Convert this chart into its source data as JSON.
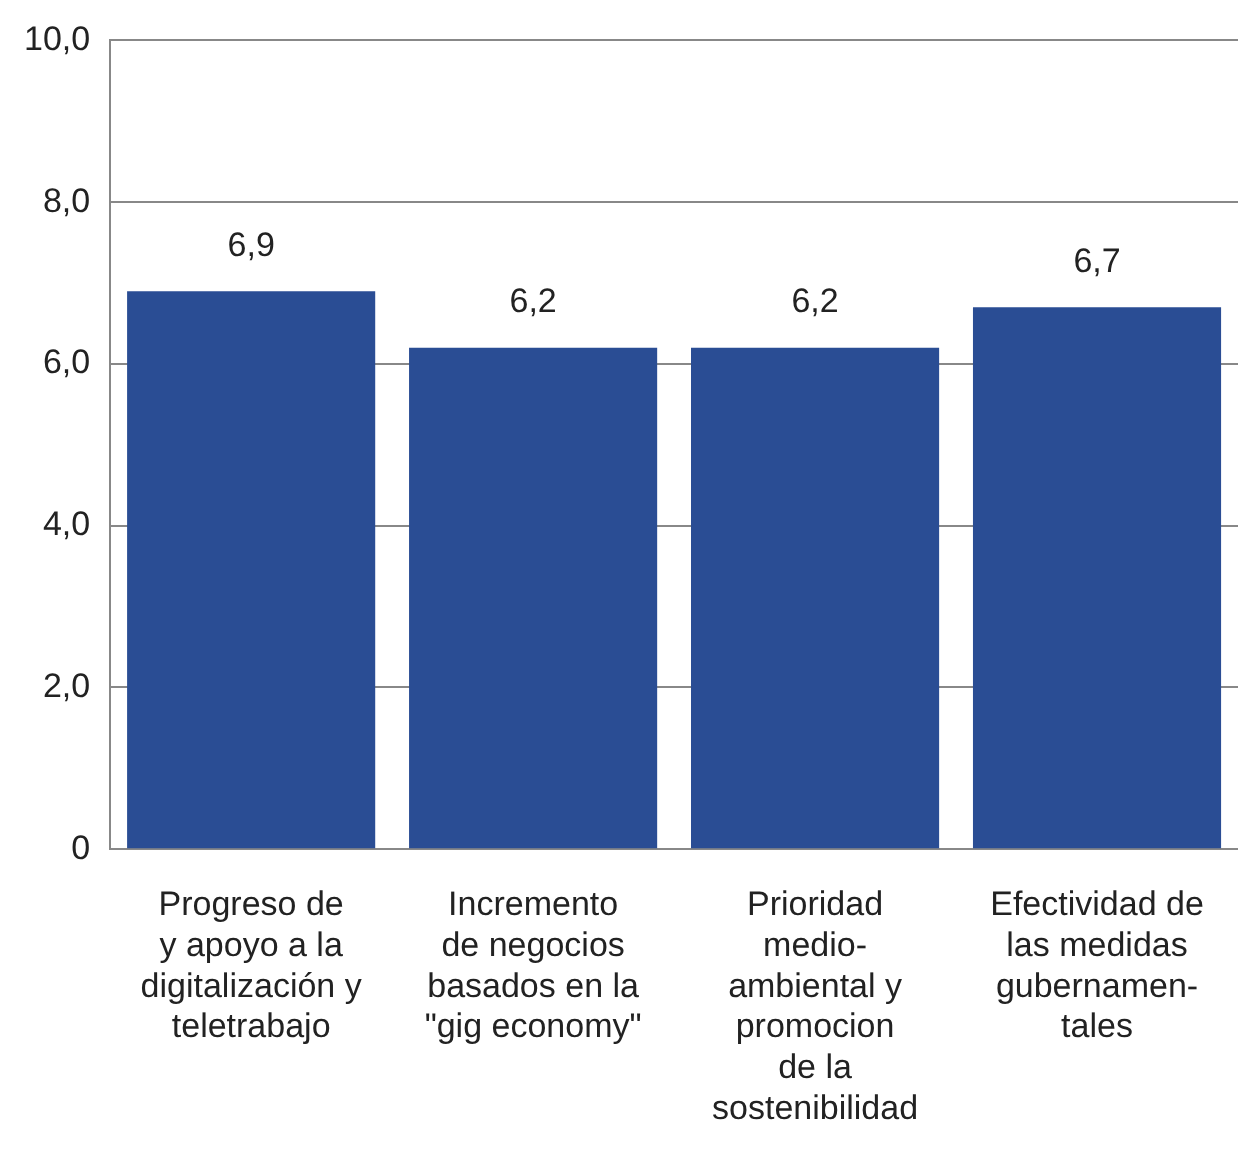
{
  "chart_data": {
    "type": "bar",
    "categories": [
      "Progreso de\ny apoyo a la\ndigitalización y\nteletrabajo",
      "Incremento\nde negocios\nbasados en la\n\"gig economy\"",
      "Prioridad\nmedio-\nambiental y\npromocion\nde la\nsostenibilidad",
      "Efectividad de\nlas medidas\ngubernamen-\ntales"
    ],
    "values": [
      6.9,
      6.2,
      6.2,
      6.7
    ],
    "value_labels": [
      "6,9",
      "6,2",
      "6,2",
      "6,7"
    ],
    "color": "#2a4d94",
    "ylim": [
      0,
      10
    ],
    "yticks": [
      {
        "value": 0,
        "label": "0"
      },
      {
        "value": 2,
        "label": "2,0"
      },
      {
        "value": 4,
        "label": "4,0"
      },
      {
        "value": 6,
        "label": "6,0"
      },
      {
        "value": 8,
        "label": "8,0"
      },
      {
        "value": 10,
        "label": "10,0"
      }
    ],
    "grid": "y"
  }
}
